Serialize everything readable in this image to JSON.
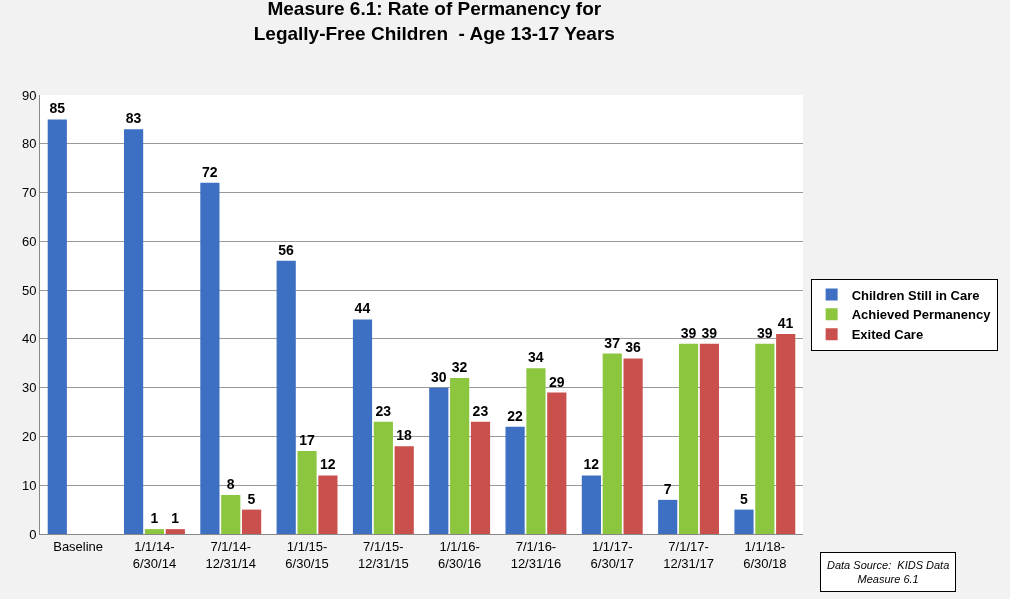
{
  "chart_data": {
    "type": "bar",
    "title": "Measure 6.1: Rate of Permanency for\nLegally-Free Children  - Age 13-17 Years",
    "categories": [
      "Baseline",
      "1/1/14-\n6/30/14",
      "7/1/14-\n12/31/14",
      "1/1/15-\n6/30/15",
      "7/1/15-\n12/31/15",
      "1/1/16-\n6/30/16",
      "7/1/16-\n12/31/16",
      "1/1/17-\n6/30/17",
      "7/1/17-\n12/31/17",
      "1/1/18-\n6/30/18"
    ],
    "series": [
      {
        "name": "Children Still in Care",
        "color": "#3d70c2",
        "values": [
          85,
          83,
          72,
          56,
          44,
          30,
          22,
          12,
          7,
          5
        ]
      },
      {
        "name": "Achieved Permanency",
        "color": "#8cc63f",
        "values": [
          null,
          1,
          8,
          17,
          23,
          32,
          34,
          37,
          39,
          39
        ]
      },
      {
        "name": "Exited Care",
        "color": "#c9504d",
        "values": [
          null,
          1,
          5,
          12,
          18,
          23,
          29,
          36,
          39,
          41
        ]
      }
    ],
    "ylim": [
      0,
      90
    ],
    "yticks": [
      0,
      10,
      20,
      30,
      40,
      50,
      60,
      70,
      80,
      90
    ],
    "grid": "y",
    "legend": "right",
    "data_labels": true,
    "annotations": [
      "Data Source:  KIDS Data\nMeasure 6.1"
    ]
  }
}
